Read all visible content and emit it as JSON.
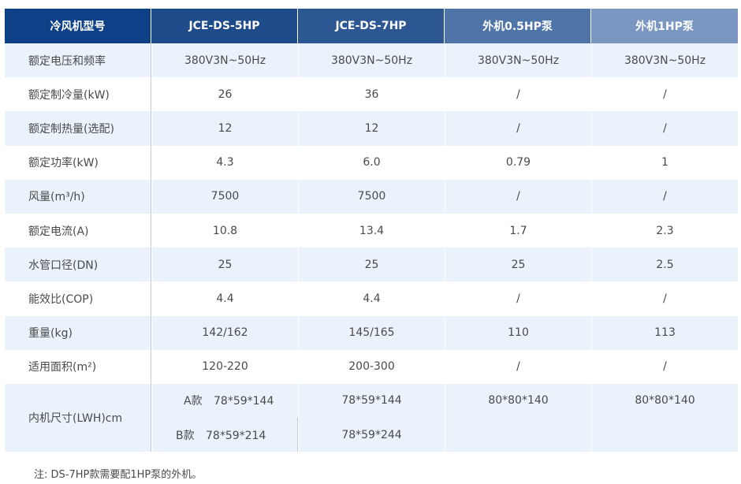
{
  "header": [
    "冷风机型号",
    "JCE-DS-5HP",
    "JCE-DS-7HP",
    "外机0.5HP泵",
    "外机1HP泵"
  ],
  "rows": [
    {
      "label": "额定电压和频率",
      "v": [
        "380V3N~50Hz",
        "380V3N~50Hz",
        "380V3N~50Hz",
        "380V3N~50Hz"
      ]
    },
    {
      "label": "额定制冷量(kW)",
      "v": [
        "26",
        "36",
        "/",
        "/"
      ]
    },
    {
      "label": "额定制热量(选配)",
      "v": [
        "12",
        "12",
        "/",
        "/"
      ]
    },
    {
      "label": "额定功率(kW)",
      "v": [
        "4.3",
        "6.0",
        "0.79",
        "1"
      ]
    },
    {
      "label": "风量(m³/h)",
      "v": [
        "7500",
        "7500",
        "/",
        "/"
      ]
    },
    {
      "label": "额定电流(A)",
      "v": [
        "10.8",
        "13.4",
        "1.7",
        "2.3"
      ]
    },
    {
      "label": "水管口径(DN)",
      "v": [
        "25",
        "25",
        "25",
        "2.5"
      ]
    },
    {
      "label": "能效比(COP)",
      "v": [
        "4.4",
        "4.4",
        "/",
        "/"
      ]
    },
    {
      "label": "重量(kg)",
      "v": [
        "142/162",
        "145/165",
        "110",
        "113"
      ]
    },
    {
      "label": "适用面积(m²)",
      "v": [
        "120-220",
        "200-300",
        "/",
        "/"
      ]
    }
  ],
  "size_row": {
    "label": "内机尺寸(LWH)cm",
    "a_tag": "A款",
    "a_5hp": "78*59*144",
    "a_7hp": "78*59*144",
    "b_tag": "B款",
    "b_5hp": "78*59*214",
    "b_7hp": "78*59*244",
    "pump05": "80*80*140",
    "pump1": "80*80*140"
  },
  "note": "注:  DS-7HP款需要配1HP泵的外机。"
}
